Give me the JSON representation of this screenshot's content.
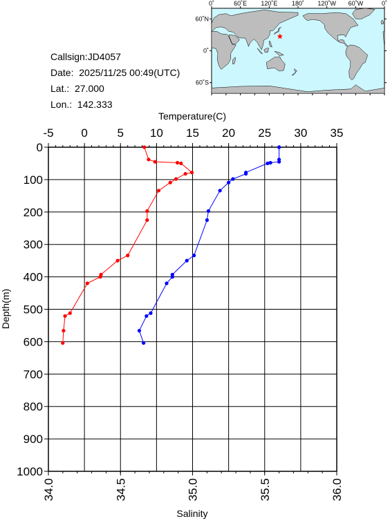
{
  "info": {
    "callsign": "Callsign:JD4057",
    "date": "Date:  2025/11/25 00:49(UTC)",
    "lat": "Lat.:  27.000",
    "lon": "Lon.:  142.333"
  },
  "map": {
    "top_labels": [
      "0˚",
      "60˚E",
      "120˚E",
      "180˚",
      "120˚W",
      "60˚W",
      "0˚"
    ],
    "left_labels": [
      "60˚N",
      "0˚",
      "60˚S"
    ],
    "ocean_color": "#ccf7ff",
    "land_color": "#bdbdbd",
    "marker": {
      "lat": 27.0,
      "lon": 142.333,
      "color": "#ff0000",
      "icon": "star-icon"
    }
  },
  "chart_data": {
    "type": "line",
    "ylabel": "Depth(m)",
    "y_ticks": [
      "0",
      "100",
      "200",
      "300",
      "400",
      "500",
      "600",
      "700",
      "800",
      "900",
      "1000"
    ],
    "ylim": [
      1000,
      0
    ],
    "top_axis": {
      "label": "Temperature(C)",
      "range": [
        -5,
        35
      ],
      "ticks": [
        "-5",
        "0",
        "5",
        "10",
        "15",
        "20",
        "25",
        "30",
        "35"
      ]
    },
    "bottom_axis": {
      "label": "Salinity",
      "range": [
        34.0,
        36.0
      ],
      "ticks": [
        "34.0",
        "34.5",
        "35.0",
        "35.5",
        "36.0"
      ]
    },
    "grid": true,
    "series": [
      {
        "axis": "top",
        "color": "#ff0000",
        "points": [
          [
            8.3,
            0
          ],
          [
            8.9,
            38
          ],
          [
            9.8,
            45
          ],
          [
            12.9,
            48
          ],
          [
            13.4,
            50
          ],
          [
            14.9,
            78
          ],
          [
            14.0,
            82
          ],
          [
            12.7,
            98
          ],
          [
            11.9,
            109
          ],
          [
            10.3,
            134
          ],
          [
            8.7,
            197
          ],
          [
            8.7,
            225
          ],
          [
            6.0,
            334
          ],
          [
            4.6,
            350
          ],
          [
            2.3,
            393
          ],
          [
            2.2,
            400
          ],
          [
            0.4,
            420
          ],
          [
            -2.0,
            512
          ],
          [
            -2.7,
            521
          ],
          [
            -2.9,
            566
          ],
          [
            -3.0,
            604
          ]
        ]
      },
      {
        "axis": "bottom",
        "color": "#0000ff",
        "points": [
          [
            35.6,
            0
          ],
          [
            35.6,
            38
          ],
          [
            35.6,
            45
          ],
          [
            35.54,
            48
          ],
          [
            35.52,
            50
          ],
          [
            35.37,
            78
          ],
          [
            35.37,
            82
          ],
          [
            35.28,
            98
          ],
          [
            35.25,
            109
          ],
          [
            35.19,
            134
          ],
          [
            35.11,
            197
          ],
          [
            35.1,
            225
          ],
          [
            35.01,
            334
          ],
          [
            34.96,
            350
          ],
          [
            34.86,
            393
          ],
          [
            34.86,
            400
          ],
          [
            34.82,
            420
          ],
          [
            34.71,
            512
          ],
          [
            34.68,
            521
          ],
          [
            34.63,
            566
          ],
          [
            34.66,
            604
          ]
        ]
      }
    ]
  }
}
